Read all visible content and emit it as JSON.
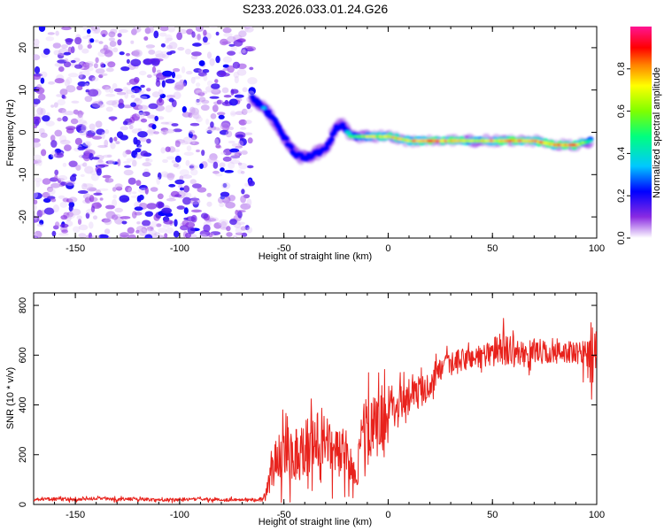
{
  "chart_data": [
    {
      "type": "heatmap",
      "title": "S233.2026.033.01.24.G26",
      "xlabel": "Height of straight line (km)",
      "ylabel": "Frequency (Hz)",
      "xlim": [
        -170,
        100
      ],
      "ylim": [
        -25,
        25
      ],
      "xticks": [
        "-150",
        "-100",
        "-50",
        "0",
        "50",
        "100"
      ],
      "yticks": [
        "20",
        "10",
        "0",
        "-10",
        "-20"
      ],
      "noise_region_x": [
        -170,
        -65
      ],
      "ridge": {
        "x": [
          -65,
          -60,
          -55,
          -50,
          -45,
          -40,
          -35,
          -30,
          -25,
          -22,
          -18,
          -10,
          0,
          10,
          20,
          30,
          40,
          50,
          60,
          70,
          80,
          90,
          97
        ],
        "y": [
          8,
          6,
          3,
          -1,
          -5,
          -6,
          -5,
          -4,
          1,
          2,
          -1,
          -1,
          -1,
          -2,
          -2,
          -2,
          -2,
          -2,
          -2,
          -2,
          -3,
          -3,
          -2
        ],
        "amplitude": [
          0.25,
          0.35,
          0.3,
          0.3,
          0.2,
          0.25,
          0.3,
          0.3,
          0.3,
          0.3,
          0.5,
          0.7,
          0.75,
          0.8,
          0.9,
          0.85,
          0.7,
          0.8,
          0.9,
          0.85,
          0.9,
          0.9,
          0.5
        ]
      },
      "colorbar": {
        "label": "Normalized spectral amplitude",
        "ticks": [
          "0.0",
          "0.2",
          "0.4",
          "0.6",
          "0.8"
        ],
        "range": [
          0,
          1
        ]
      }
    },
    {
      "type": "line",
      "xlabel": "Height of straight line (km)",
      "ylabel": "SNR (10 * v/v)",
      "xlim": [
        -170,
        100
      ],
      "ylim": [
        0,
        850
      ],
      "xticks": [
        "-150",
        "-100",
        "-50",
        "0",
        "50",
        "100"
      ],
      "yticks": [
        "0",
        "200",
        "400",
        "600",
        "800"
      ],
      "color": "#e8221c",
      "series": [
        {
          "name": "SNR",
          "x": [
            -170,
            -160,
            -150,
            -140,
            -130,
            -120,
            -110,
            -100,
            -90,
            -80,
            -70,
            -60,
            -58,
            -55,
            -50,
            -45,
            -40,
            -35,
            -30,
            -25,
            -20,
            -15,
            -12,
            -10,
            -5,
            0,
            5,
            10,
            15,
            20,
            25,
            30,
            35,
            40,
            45,
            50,
            55,
            60,
            65,
            70,
            75,
            80,
            85,
            90,
            95,
            98,
            100
          ],
          "values": [
            20,
            22,
            18,
            25,
            20,
            22,
            18,
            20,
            22,
            18,
            20,
            20,
            60,
            150,
            250,
            200,
            230,
            260,
            240,
            220,
            180,
            120,
            300,
            280,
            320,
            380,
            420,
            440,
            450,
            480,
            540,
            560,
            580,
            590,
            600,
            610,
            630,
            620,
            600,
            620,
            610,
            600,
            620,
            600,
            610,
            600,
            610
          ],
          "spread": [
            8,
            8,
            8,
            8,
            8,
            8,
            8,
            8,
            8,
            8,
            8,
            10,
            40,
            100,
            160,
            150,
            150,
            150,
            140,
            130,
            100,
            60,
            200,
            180,
            160,
            120,
            100,
            80,
            80,
            70,
            60,
            60,
            60,
            60,
            60,
            70,
            90,
            70,
            60,
            60,
            60,
            60,
            60,
            60,
            90,
            140,
            120
          ]
        }
      ]
    }
  ]
}
